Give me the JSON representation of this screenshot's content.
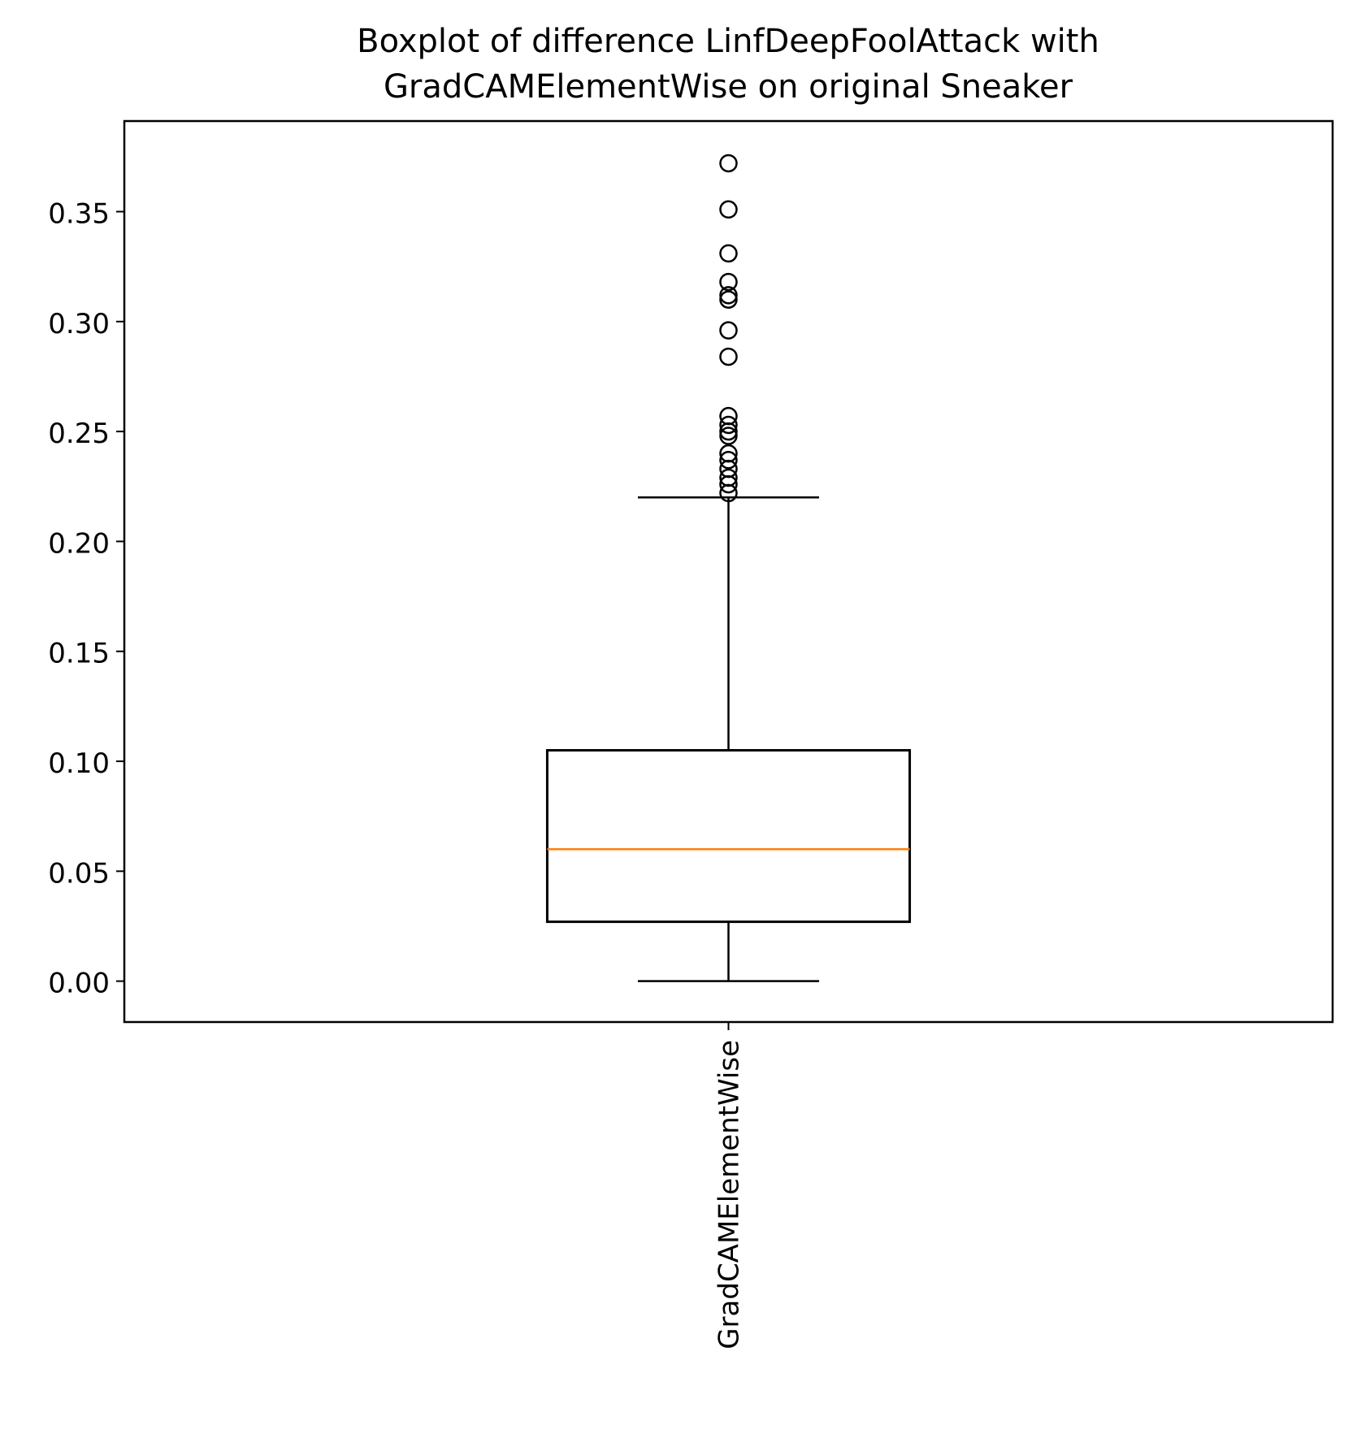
{
  "chart_data": {
    "type": "box",
    "title_lines": [
      "Boxplot of difference LinfDeepFoolAttack with",
      "GradCAMElementWise on original Sneaker"
    ],
    "categories": [
      "GradCAMElementWise"
    ],
    "y_ticks": [
      0.0,
      0.05,
      0.1,
      0.15,
      0.2,
      0.25,
      0.3,
      0.35
    ],
    "y_tick_labels": [
      "0.00",
      "0.05",
      "0.10",
      "0.15",
      "0.20",
      "0.25",
      "0.30",
      "0.35"
    ],
    "ylim": [
      -0.0186,
      0.3912
    ],
    "xlim": [
      0.5,
      1.5
    ],
    "grid": false,
    "boxes": [
      {
        "category": "GradCAMElementWise",
        "whisker_low": 0.0,
        "q1": 0.027,
        "median": 0.06,
        "q3": 0.105,
        "whisker_high": 0.22,
        "outliers": [
          0.372,
          0.351,
          0.331,
          0.318,
          0.312,
          0.31,
          0.296,
          0.284,
          0.257,
          0.253,
          0.25,
          0.248,
          0.24,
          0.237,
          0.233,
          0.229,
          0.226,
          0.222
        ]
      }
    ],
    "colors": {
      "box": "#000000",
      "median": "#ff7f0e",
      "outlier": "#000000"
    }
  }
}
